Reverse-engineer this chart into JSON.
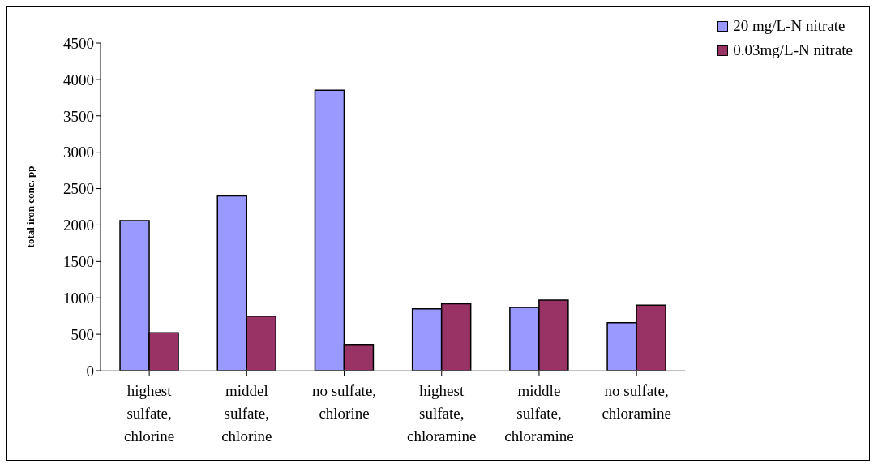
{
  "chart_data": {
    "type": "bar",
    "ylabel": "total iron conc. pp",
    "categories": [
      "highest sulfate, chlorine",
      "middel sulfate, chlorine",
      "no sulfate, chlorine",
      "highest sulfate, chloramine",
      "middle sulfate, chloramine",
      "no sulfate, chloramine"
    ],
    "series": [
      {
        "name": "20 mg/L-N nitrate",
        "color": "#9999ff",
        "values": [
          2060,
          2400,
          3850,
          850,
          870,
          660
        ]
      },
      {
        "name": "0.03mg/L-N nitrate",
        "color": "#993366",
        "values": [
          520,
          750,
          360,
          920,
          970,
          900
        ]
      }
    ],
    "ylim": [
      0,
      4500
    ],
    "yticks": [
      0,
      500,
      1000,
      1500,
      2000,
      2500,
      3000,
      3500,
      4000,
      4500
    ],
    "grid": false,
    "legend": "top right"
  }
}
